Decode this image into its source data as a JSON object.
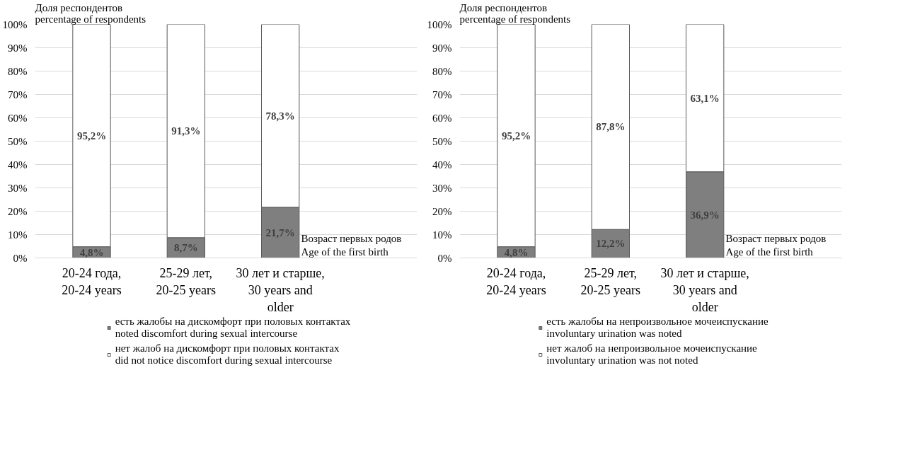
{
  "chart_data": [
    {
      "type": "bar",
      "stacked": true,
      "ylabel": "Доля респондентов\npercentage of respondents",
      "xlabel": "Возраст первых родов\nAge of the first birth",
      "categories": [
        "20-24 года,\n20-24 years",
        "25-29 лет,\n20-25 years",
        "30 лет и старше,\n30 years and\nolder"
      ],
      "series": [
        {
          "name": "есть жалобы на дискомфорт при половых контактах\nnoted discomfort during sexual intercourse",
          "color": "#7f7f7f",
          "values": [
            4.8,
            8.7,
            21.7
          ],
          "value_labels": [
            "4,8%",
            "8,7%",
            "21,7%"
          ]
        },
        {
          "name": "нет жалоб на дискомфорт при половых контактах\ndid not notice discomfort during sexual intercourse",
          "color": "#ffffff",
          "values": [
            95.2,
            91.3,
            78.3
          ],
          "value_labels": [
            "95,2%",
            "91,3%",
            "78,3%"
          ]
        }
      ],
      "ylim": [
        0,
        100
      ],
      "yticks": [
        {
          "value": 0,
          "label": "0%"
        },
        {
          "value": 10,
          "label": "10%"
        },
        {
          "value": 20,
          "label": "20%"
        },
        {
          "value": 30,
          "label": "30%"
        },
        {
          "value": 40,
          "label": "40%"
        },
        {
          "value": 50,
          "label": "50%"
        },
        {
          "value": 60,
          "label": "60%"
        },
        {
          "value": 70,
          "label": "70%"
        },
        {
          "value": 80,
          "label": "80%"
        },
        {
          "value": 90,
          "label": "90%"
        },
        {
          "value": 100,
          "label": "100%"
        }
      ],
      "grid": "y",
      "legend": "bottom"
    },
    {
      "type": "bar",
      "stacked": true,
      "ylabel": "Доля респондентов\npercentage of respondents",
      "xlabel": "Возраст первых родов\nAge of the first birth",
      "categories": [
        "20-24 года,\n20-24 years",
        "25-29 лет,\n20-25 years",
        "30 лет и старше,\n30 years and\nolder"
      ],
      "series": [
        {
          "name": "есть жалобы на непроизвольное мочеиспускание\ninvoluntary urination was noted",
          "color": "#7f7f7f",
          "values": [
            4.8,
            12.2,
            36.9
          ],
          "value_labels": [
            "4,8%",
            "12,2%",
            "36,9%"
          ]
        },
        {
          "name": "нет жалоб на непроизвольное мочеиспускание\ninvoluntary urination was not noted",
          "color": "#ffffff",
          "values": [
            95.2,
            87.8,
            63.1
          ],
          "value_labels": [
            "95,2%",
            "87,8%",
            "63,1%"
          ]
        }
      ],
      "ylim": [
        0,
        100
      ],
      "yticks": [
        {
          "value": 0,
          "label": "0%"
        },
        {
          "value": 10,
          "label": "10%"
        },
        {
          "value": 20,
          "label": "20%"
        },
        {
          "value": 30,
          "label": "30%"
        },
        {
          "value": 40,
          "label": "40%"
        },
        {
          "value": 50,
          "label": "50%"
        },
        {
          "value": 60,
          "label": "60%"
        },
        {
          "value": 70,
          "label": "70%"
        },
        {
          "value": 80,
          "label": "80%"
        },
        {
          "value": 90,
          "label": "90%"
        },
        {
          "value": 100,
          "label": "100%"
        }
      ],
      "grid": "y",
      "legend": "bottom"
    }
  ]
}
